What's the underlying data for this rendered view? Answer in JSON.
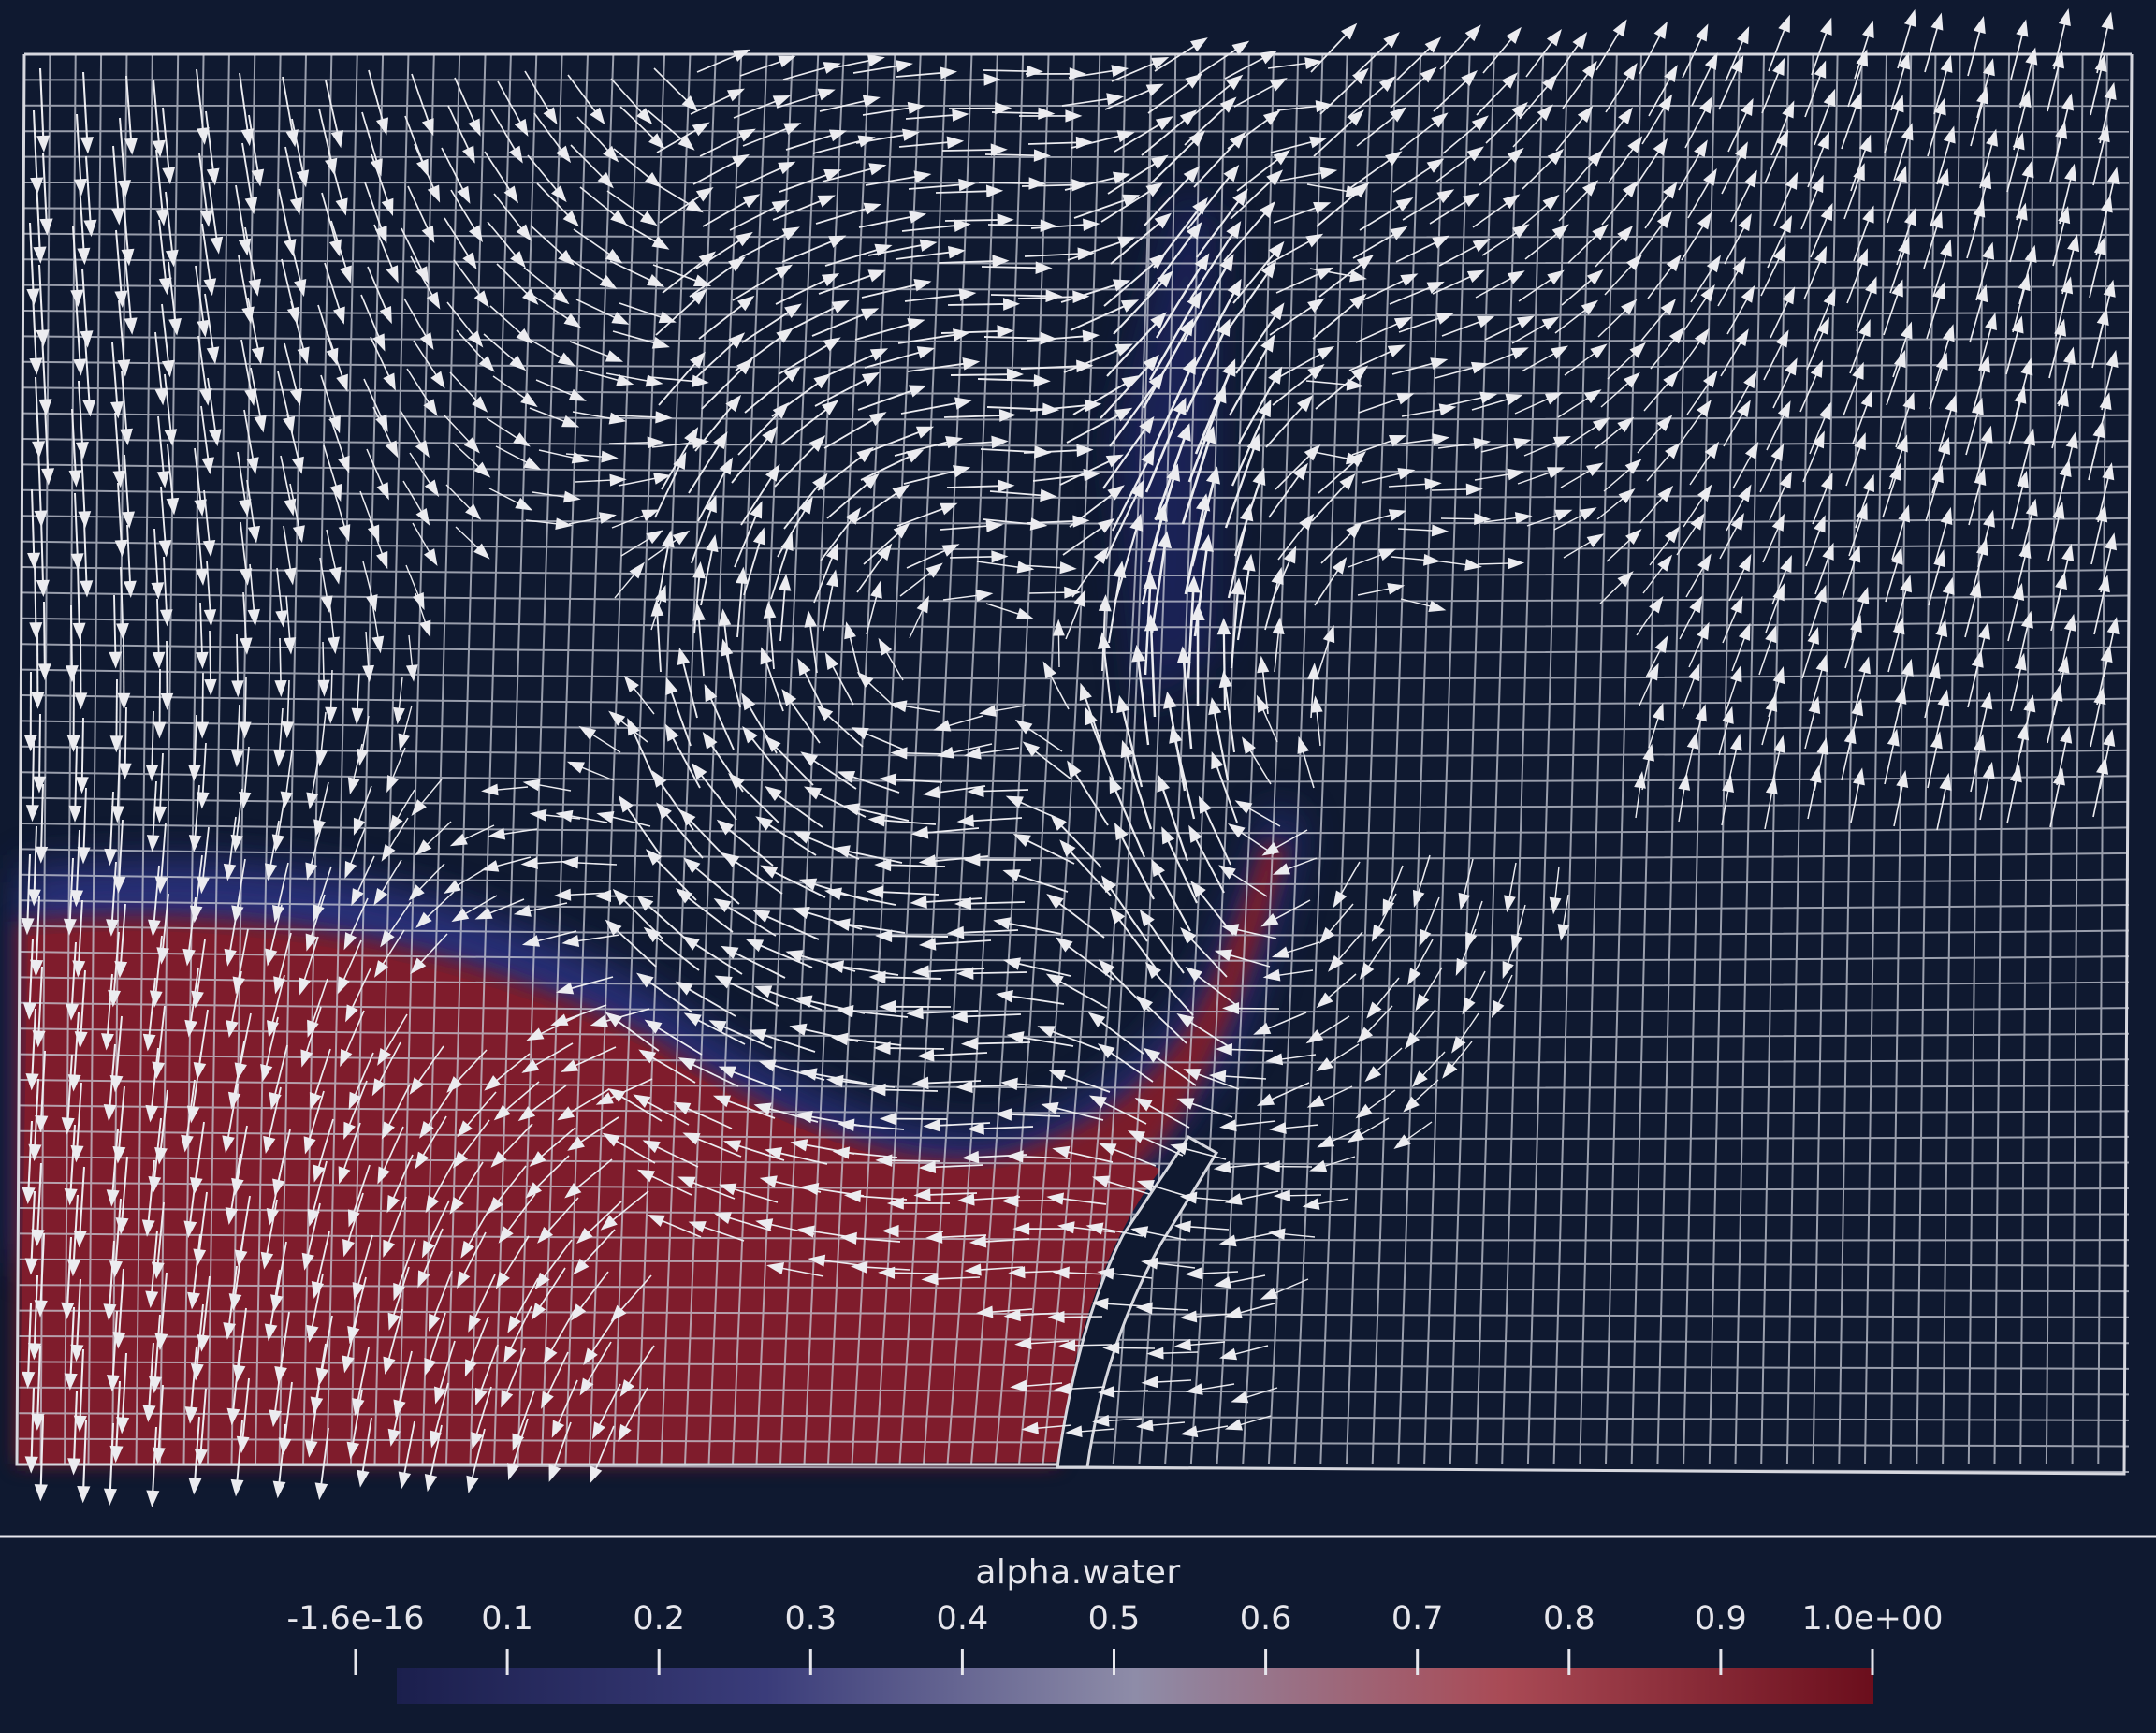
{
  "colorbar": {
    "title": "alpha.water",
    "range": [
      0,
      1
    ],
    "colors": {
      "low": "#2b2c6b",
      "mid": "#8a8aa5",
      "high": "#6b0e1c"
    },
    "ticks": [
      {
        "value": 0.0,
        "label": "-1.6e-16"
      },
      {
        "value": 0.1,
        "label": "0.1"
      },
      {
        "value": 0.2,
        "label": "0.2"
      },
      {
        "value": 0.3,
        "label": "0.3"
      },
      {
        "value": 0.4,
        "label": "0.4"
      },
      {
        "value": 0.5,
        "label": "0.5"
      },
      {
        "value": 0.6,
        "label": "0.6"
      },
      {
        "value": 0.7,
        "label": "0.7"
      },
      {
        "value": 0.8,
        "label": "0.8"
      },
      {
        "value": 0.9,
        "label": "0.9"
      },
      {
        "value": 1.0,
        "label": "1.0e+00"
      }
    ]
  },
  "scene": {
    "background_color": "#0f1930",
    "water_color": "#7a1b2a",
    "grid_color": "#c9cbd6",
    "arrow_color": "#ececf0"
  }
}
